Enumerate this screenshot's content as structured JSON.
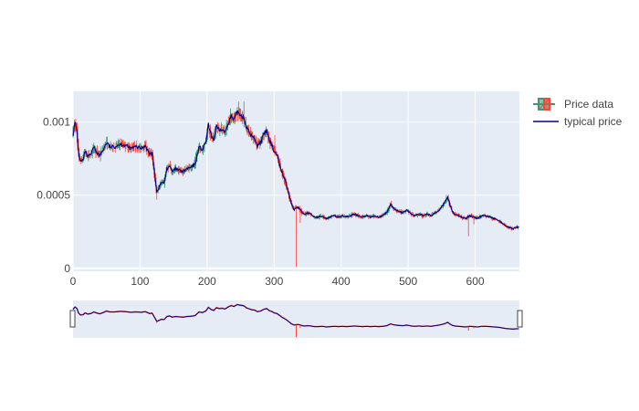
{
  "chart_data": {
    "type": "candlestick",
    "grid": true,
    "legend_position": "right",
    "xlim": [
      0,
      666
    ],
    "ylim": [
      -2e-05,
      0.00121
    ],
    "x_ticks": [
      {
        "value": 0,
        "label": "0"
      },
      {
        "value": 100,
        "label": "100"
      },
      {
        "value": 200,
        "label": "200"
      },
      {
        "value": 300,
        "label": "300"
      },
      {
        "value": 400,
        "label": "400"
      },
      {
        "value": 500,
        "label": "500"
      },
      {
        "value": 600,
        "label": "600"
      }
    ],
    "y_ticks": [
      {
        "value": 0,
        "label": "0"
      },
      {
        "value": 0.0005,
        "label": "0.0005"
      },
      {
        "value": 0.001,
        "label": "0.001"
      }
    ],
    "colors": {
      "increasing": "#3D9970",
      "decreasing": "#FF4136",
      "typical_line": "#00008B",
      "plot_bg": "#E5ECF6",
      "grid": "#ffffff"
    },
    "series": [
      {
        "name": "Price data",
        "kind": "ohlc"
      },
      {
        "name": "typical price",
        "kind": "line"
      }
    ],
    "typical_price": [
      [
        0,
        0.00092
      ],
      [
        3,
        0.00099
      ],
      [
        6,
        0.00094
      ],
      [
        8,
        0.0008
      ],
      [
        11,
        0.00073
      ],
      [
        15,
        0.00074
      ],
      [
        18,
        0.0008
      ],
      [
        22,
        0.00076
      ],
      [
        27,
        0.00078
      ],
      [
        31,
        0.00083
      ],
      [
        36,
        0.00079
      ],
      [
        40,
        0.00077
      ],
      [
        45,
        0.00081
      ],
      [
        50,
        0.00086
      ],
      [
        55,
        0.00083
      ],
      [
        62,
        0.00083
      ],
      [
        70,
        0.00085
      ],
      [
        78,
        0.00084
      ],
      [
        86,
        0.00082
      ],
      [
        94,
        0.00083
      ],
      [
        102,
        0.00082
      ],
      [
        108,
        0.00084
      ],
      [
        114,
        0.00078
      ],
      [
        118,
        0.00079
      ],
      [
        122,
        0.00064
      ],
      [
        125,
        0.00052
      ],
      [
        128,
        0.00055
      ],
      [
        132,
        0.00059
      ],
      [
        136,
        0.00058
      ],
      [
        140,
        0.00068
      ],
      [
        144,
        0.0007
      ],
      [
        148,
        0.00066
      ],
      [
        153,
        0.00068
      ],
      [
        158,
        0.00067
      ],
      [
        164,
        0.00066
      ],
      [
        170,
        0.00068
      ],
      [
        176,
        0.00069
      ],
      [
        182,
        0.00071
      ],
      [
        188,
        0.00083
      ],
      [
        193,
        0.00081
      ],
      [
        198,
        0.00086
      ],
      [
        202,
        0.00098
      ],
      [
        206,
        0.00091
      ],
      [
        210,
        0.00088
      ],
      [
        214,
        0.00097
      ],
      [
        218,
        0.00094
      ],
      [
        222,
        0.00095
      ],
      [
        227,
        0.00093
      ],
      [
        232,
        0.001
      ],
      [
        236,
        0.00104
      ],
      [
        240,
        0.00101
      ],
      [
        245,
        0.00107
      ],
      [
        250,
        0.00105
      ],
      [
        255,
        0.00103
      ],
      [
        259,
        0.00096
      ],
      [
        263,
        0.00093
      ],
      [
        267,
        0.0009
      ],
      [
        271,
        0.00089
      ],
      [
        275,
        0.00084
      ],
      [
        280,
        0.00086
      ],
      [
        285,
        0.00092
      ],
      [
        289,
        0.00094
      ],
      [
        293,
        0.00087
      ],
      [
        297,
        0.00084
      ],
      [
        300,
        0.0008
      ],
      [
        304,
        0.00078
      ],
      [
        308,
        0.00072
      ],
      [
        311,
        0.00067
      ],
      [
        314,
        0.00063
      ],
      [
        318,
        0.00058
      ],
      [
        322,
        0.00051
      ],
      [
        326,
        0.00044
      ],
      [
        330,
        0.0004
      ],
      [
        334,
        0.00042
      ],
      [
        338,
        0.00041
      ],
      [
        342,
        0.00038
      ],
      [
        346,
        0.00037
      ],
      [
        350,
        0.00038
      ],
      [
        355,
        0.00037
      ],
      [
        360,
        0.00035
      ],
      [
        366,
        0.00035
      ],
      [
        372,
        0.00036
      ],
      [
        378,
        0.00034
      ],
      [
        384,
        0.00035
      ],
      [
        390,
        0.00036
      ],
      [
        396,
        0.00035
      ],
      [
        402,
        0.00036
      ],
      [
        408,
        0.00035
      ],
      [
        414,
        0.00036
      ],
      [
        420,
        0.00037
      ],
      [
        426,
        0.00036
      ],
      [
        432,
        0.00035
      ],
      [
        438,
        0.00036
      ],
      [
        444,
        0.00035
      ],
      [
        450,
        0.00036
      ],
      [
        456,
        0.00035
      ],
      [
        462,
        0.00036
      ],
      [
        468,
        0.00038
      ],
      [
        474,
        0.00044
      ],
      [
        478,
        0.00041
      ],
      [
        482,
        0.0004
      ],
      [
        486,
        0.00039
      ],
      [
        492,
        0.00038
      ],
      [
        498,
        0.0004
      ],
      [
        505,
        0.00037
      ],
      [
        510,
        0.00036
      ],
      [
        516,
        0.00037
      ],
      [
        522,
        0.00036
      ],
      [
        528,
        0.00037
      ],
      [
        534,
        0.00036
      ],
      [
        540,
        0.00038
      ],
      [
        546,
        0.0004
      ],
      [
        552,
        0.00043
      ],
      [
        556,
        0.00046
      ],
      [
        559,
        0.00049
      ],
      [
        562,
        0.00044
      ],
      [
        566,
        0.00039
      ],
      [
        570,
        0.00037
      ],
      [
        575,
        0.00036
      ],
      [
        580,
        0.00035
      ],
      [
        586,
        0.00034
      ],
      [
        592,
        0.00036
      ],
      [
        598,
        0.00035
      ],
      [
        604,
        0.00034
      ],
      [
        610,
        0.00036
      ],
      [
        616,
        0.00036
      ],
      [
        622,
        0.00035
      ],
      [
        628,
        0.00034
      ],
      [
        634,
        0.00033
      ],
      [
        640,
        0.00031
      ],
      [
        645,
        0.00029
      ],
      [
        650,
        0.00028
      ],
      [
        656,
        0.00027
      ],
      [
        662,
        0.00028
      ],
      [
        666,
        0.00028
      ]
    ],
    "spikes": [
      {
        "x": 125,
        "low": 0.00047,
        "color": "decreasing"
      },
      {
        "x": 333,
        "low": 1e-05,
        "color": "decreasing"
      },
      {
        "x": 339,
        "low": 0.00031,
        "color": "decreasing"
      },
      {
        "x": 590,
        "low": 0.00022,
        "color": "decreasing"
      },
      {
        "x": 598,
        "low": 0.0003,
        "color": "decreasing"
      },
      {
        "x": 247,
        "high": 0.00114,
        "color": "increasing"
      },
      {
        "x": 255,
        "high": 0.00114,
        "color": "increasing"
      },
      {
        "x": 301,
        "high": 0.00091,
        "color": "decreasing"
      }
    ]
  }
}
